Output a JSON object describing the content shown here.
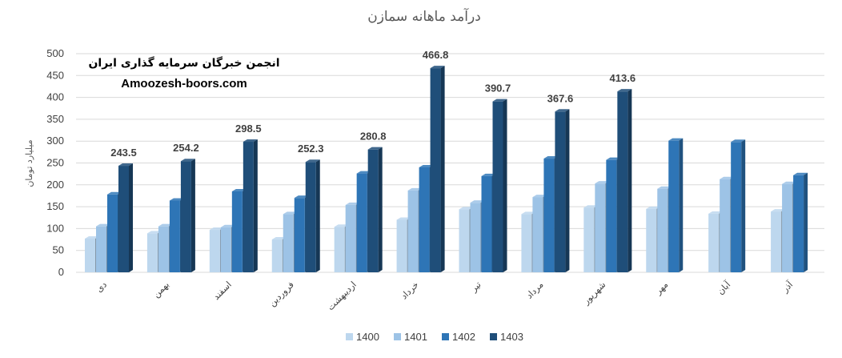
{
  "watermark": {
    "line1": "انجمن خبرگان سرمایه گذاری ایران",
    "line2": "Amoozesh-boors.com"
  },
  "chart_data": {
    "type": "bar",
    "title": "درآمد ماهانه سمازن",
    "ylabel": "میلیارد تومان",
    "xlabel": "",
    "ylim": [
      0,
      500
    ],
    "yticks": [
      0,
      50,
      100,
      150,
      200,
      250,
      300,
      350,
      400,
      450,
      500
    ],
    "grid": true,
    "legend_position": "bottom",
    "categories": [
      "دی",
      "بهمن",
      "اسفند",
      "فروردین",
      "اردیبهشت",
      "خرداد",
      "تیر",
      "مرداد",
      "شهریور",
      "مهر",
      "آبان",
      "آذر"
    ],
    "series": [
      {
        "name": "1400",
        "color": "#bdd7ee",
        "values": [
          77,
          89,
          97,
          75,
          104,
          120,
          144,
          133,
          148,
          145,
          134,
          139
        ]
      },
      {
        "name": "1401",
        "color": "#9dc3e6",
        "values": [
          105,
          105,
          103,
          133,
          154,
          187,
          159,
          172,
          203,
          191,
          213,
          202
        ]
      },
      {
        "name": "1402",
        "color": "#2e75b6",
        "values": [
          178,
          164,
          185,
          170,
          226,
          240,
          220,
          260,
          257,
          301,
          298,
          222
        ]
      },
      {
        "name": "1403",
        "color": "#1f4e79",
        "values": [
          243.5,
          254.2,
          298.5,
          252.3,
          280.8,
          466.8,
          390.7,
          367.6,
          413.6,
          null,
          null,
          null
        ]
      }
    ],
    "data_labels": {
      "series": "1403",
      "values": [
        "243.5",
        "254.2",
        "298.5",
        "252.3",
        "280.8",
        "466.8",
        "390.7",
        "367.6",
        "413.6"
      ]
    }
  }
}
